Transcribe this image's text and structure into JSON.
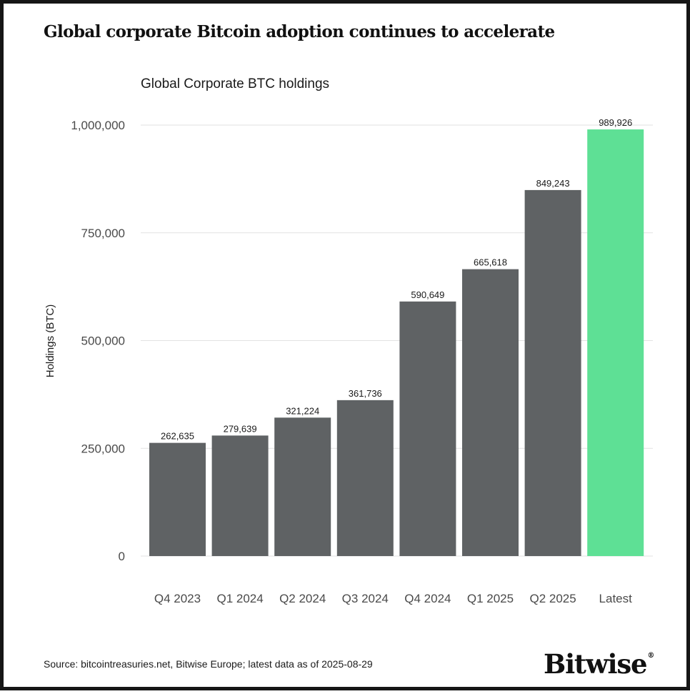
{
  "header": {
    "title": "Global corporate Bitcoin adoption continues to accelerate"
  },
  "chart_data": {
    "type": "bar",
    "title": "Global Corporate BTC holdings",
    "xlabel": "",
    "ylabel": "Holdings (BTC)",
    "ylim": [
      0,
      1000000
    ],
    "yticks": [
      0,
      250000,
      500000,
      750000,
      1000000
    ],
    "ytick_labels": [
      "0",
      "250,000",
      "500,000",
      "750,000",
      "1,000,000"
    ],
    "grid": true,
    "categories": [
      "Q4 2023",
      "Q1 2024",
      "Q2 2024",
      "Q3 2024",
      "Q4 2024",
      "Q1 2025",
      "Q2 2025",
      "Latest"
    ],
    "values": [
      262635,
      279639,
      321224,
      361736,
      590649,
      665618,
      849243,
      989926
    ],
    "value_labels": [
      "262,635",
      "279,639",
      "321,224",
      "361,736",
      "590,649",
      "665,618",
      "849,243",
      "989,926"
    ],
    "colors": {
      "default_bar": "#5f6264",
      "highlight_bar": "#5ee095",
      "highlight_category": "Latest",
      "grid": "#e2e2e2",
      "axis_text": "#4a4a4a"
    }
  },
  "footer": {
    "source": "Source: bitcointreasuries.net, Bitwise Europe; latest data as of 2025-08-29",
    "brand": "Bitwise",
    "brand_mark": "®"
  }
}
